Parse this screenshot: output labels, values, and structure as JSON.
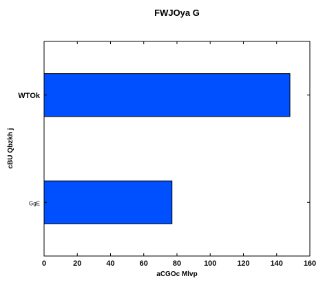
{
  "chart_data": {
    "type": "bar",
    "orientation": "horizontal",
    "title": "FWJOya G",
    "xlabel": "aCGOc  Mlvp",
    "ylabel": "cBU Qbzkh j",
    "categories": [
      "GgE",
      "WTOk"
    ],
    "values": [
      77,
      148
    ],
    "xlim": [
      0,
      160
    ],
    "xticks": [
      0,
      20,
      40,
      60,
      80,
      100,
      120,
      140,
      160
    ],
    "grid": false,
    "legend": "none",
    "bar_color": "#0050ff",
    "edge_color": "#000000"
  }
}
